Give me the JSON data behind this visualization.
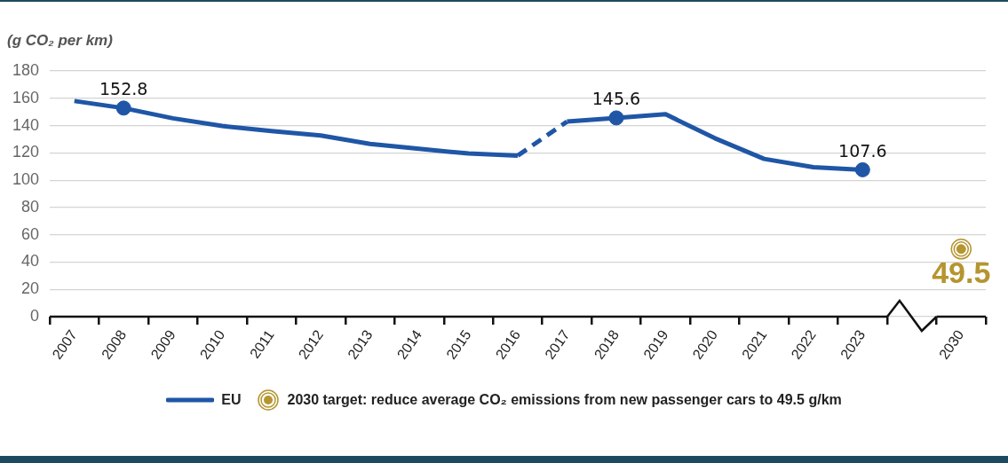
{
  "chart_data": {
    "type": "line",
    "ylabel": "(g CO₂ per km)",
    "categories": [
      "2007",
      "2008",
      "2009",
      "2010",
      "2011",
      "2012",
      "2013",
      "2014",
      "2015",
      "2016",
      "2017",
      "2018",
      "2019",
      "2020",
      "2021",
      "2022",
      "2023",
      null,
      "2030"
    ],
    "ylim": [
      0,
      180
    ],
    "yticks": [
      0,
      20,
      40,
      60,
      80,
      100,
      120,
      140,
      160,
      180
    ],
    "grid": "y",
    "legend": "bottom",
    "series": [
      {
        "name": "EU",
        "color": "#1f56a6",
        "line_style": "solid",
        "marker": "none",
        "values": [
          158.0,
          152.8,
          145.3,
          139.7,
          136.0,
          132.7,
          126.6,
          123.0,
          119.5,
          118.0,
          null,
          null,
          null,
          null,
          null,
          null,
          null,
          null,
          null
        ]
      },
      {
        "color": "#1f56a6",
        "line_style": "dashed",
        "marker": "none",
        "values": [
          null,
          null,
          null,
          null,
          null,
          null,
          null,
          null,
          null,
          118.0,
          142.9,
          null,
          null,
          null,
          null,
          null,
          null,
          null,
          null
        ]
      },
      {
        "color": "#1f56a6",
        "line_style": "solid",
        "marker": "none",
        "values": [
          null,
          null,
          null,
          null,
          null,
          null,
          null,
          null,
          null,
          null,
          142.9,
          145.6,
          148.3,
          130.7,
          115.6,
          109.5,
          107.6,
          null,
          null
        ]
      },
      {
        "type": "scatter",
        "color": "#1f56a6",
        "marker": "circle",
        "values": [
          null,
          152.8,
          null,
          null,
          null,
          null,
          null,
          null,
          null,
          null,
          null,
          145.6,
          null,
          null,
          null,
          null,
          107.6,
          null,
          null
        ],
        "value_labels": [
          null,
          "152.8",
          null,
          null,
          null,
          null,
          null,
          null,
          null,
          null,
          null,
          "145.6",
          null,
          null,
          null,
          null,
          "107.6",
          null,
          null
        ]
      },
      {
        "type": "scatter",
        "name": "2030 target: reduce average CO₂ emissions from new passenger cars to 49.5 g/km",
        "color": "#b5952f",
        "marker": "circle",
        "values": [
          null,
          null,
          null,
          null,
          null,
          null,
          null,
          null,
          null,
          null,
          null,
          null,
          null,
          null,
          null,
          null,
          null,
          null,
          49.5
        ],
        "value_labels": [
          null,
          null,
          null,
          null,
          null,
          null,
          null,
          null,
          null,
          null,
          null,
          null,
          null,
          null,
          null,
          null,
          null,
          null,
          "49.5"
        ]
      }
    ]
  }
}
